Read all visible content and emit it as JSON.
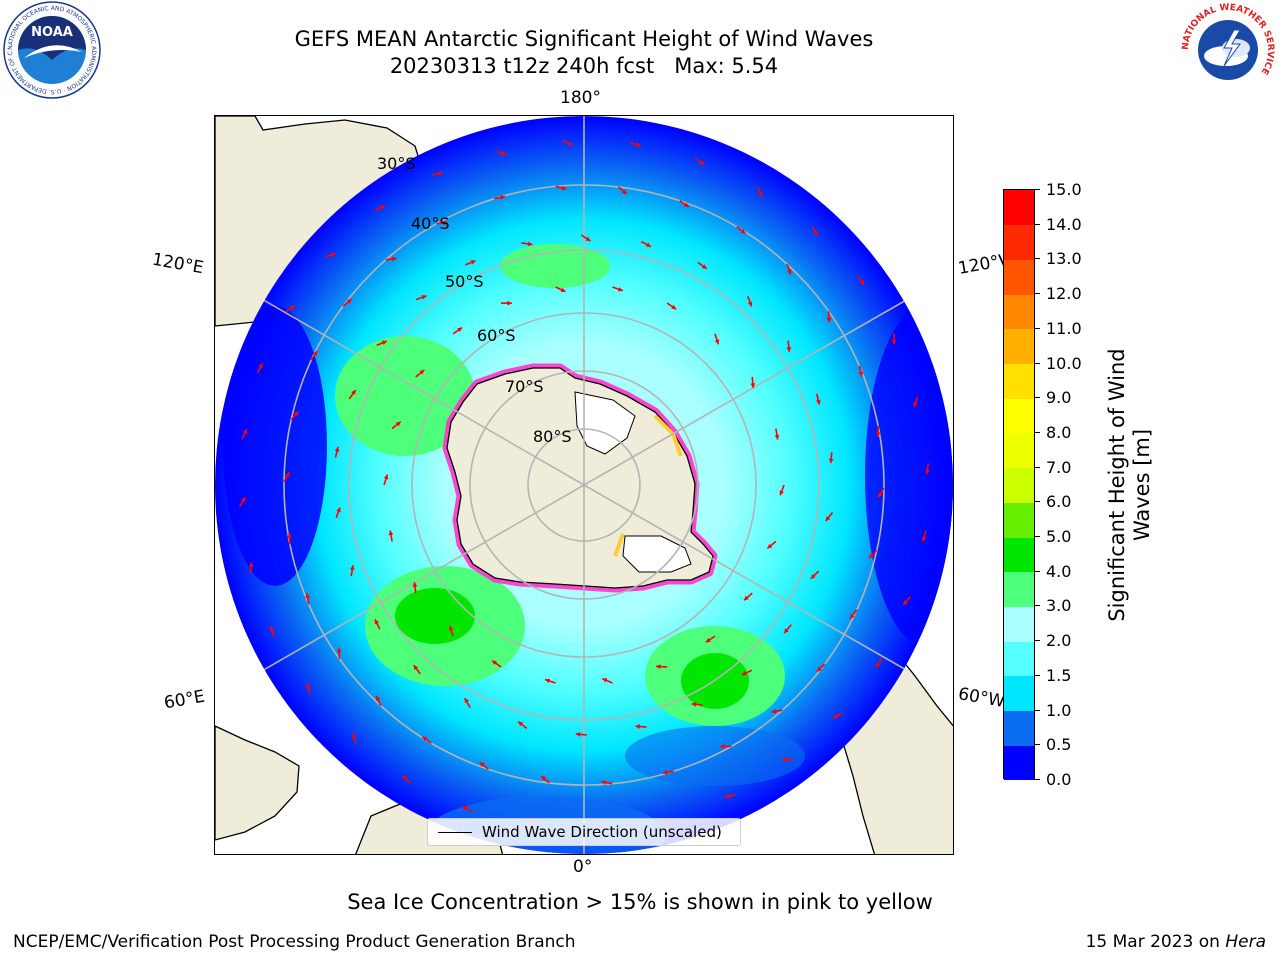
{
  "header": {
    "title_line1": "GEFS MEAN Antarctic Significant Height of Wind Waves",
    "title_line2": "20230313 t12z 240h fcst   Max: 5.54"
  },
  "map": {
    "projection": "south-polar-stereographic",
    "colors": {
      "land": "#efecd9",
      "coast": "#000000",
      "grid": "#b4b4b4",
      "arrow": "#ff0000",
      "sea_ice_low": "#ff33cc",
      "sea_ice_high": "#ffcc33"
    },
    "longitude_labels": [
      "180°",
      "120°E",
      "120°W",
      "60°E",
      "60°W",
      "0°"
    ],
    "latitude_labels": [
      "30°S",
      "40°S",
      "50°S",
      "60°S",
      "70°S",
      "80°S"
    ],
    "legend_label": "Wind Wave Direction (unscaled)"
  },
  "colorbar": {
    "label_line1": "Significant Height of Wind",
    "label_line2": "Waves [m]",
    "ticks": [
      "0.0",
      "0.5",
      "1.0",
      "1.5",
      "2.0",
      "3.0",
      "4.0",
      "5.0",
      "6.0",
      "7.0",
      "8.0",
      "9.0",
      "10.0",
      "11.0",
      "12.0",
      "13.0",
      "14.0",
      "15.0"
    ],
    "colors": [
      "#0000ff",
      "#0a6cf2",
      "#00e6ff",
      "#55ffff",
      "#aaffff",
      "#4dff7a",
      "#00e600",
      "#66ee00",
      "#ccff00",
      "#eeff00",
      "#ffff00",
      "#ffe000",
      "#ffb000",
      "#ff8800",
      "#ff5500",
      "#ff2a00",
      "#ff0000"
    ]
  },
  "footer": {
    "caption": "Sea Ice Concentration > 15% is shown in pink to yellow",
    "producer": "NCEP/EMC/Verification Post Processing Product Generation Branch",
    "date": "15 Mar 2023 on",
    "system": "Hera"
  },
  "logos": {
    "left": "NOAA",
    "left_ring": "NATIONAL OCEANIC AND ATMOSPHERIC ADMINISTRATION · U.S. DEPARTMENT OF COMMERCE",
    "right_ring": "NATIONAL WEATHER SERVICE"
  }
}
